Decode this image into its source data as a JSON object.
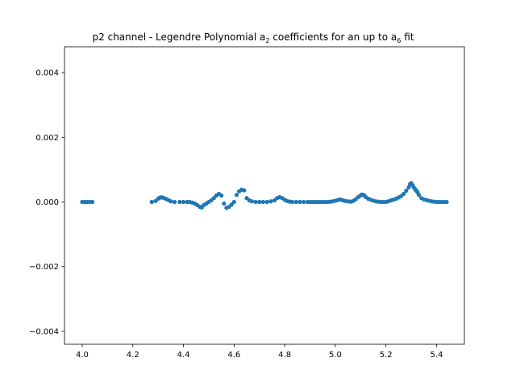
{
  "chart_data": {
    "type": "scatter",
    "title": {
      "prefix": "p2 channel - Legendre Polynomial a",
      "sub1": "2",
      "middle": " coefficients for an up to a",
      "sub2": "6",
      "suffix": " fit"
    },
    "xlabel": "",
    "ylabel": "",
    "xlim": [
      3.93,
      5.51
    ],
    "ylim": [
      -0.0044,
      0.0048
    ],
    "xticks": [
      4.0,
      4.2,
      4.4,
      4.6,
      4.8,
      5.0,
      5.2,
      5.4
    ],
    "xtick_labels": [
      "4.0",
      "4.2",
      "4.4",
      "4.6",
      "4.8",
      "5.0",
      "5.2",
      "5.4"
    ],
    "yticks": [
      -0.004,
      -0.002,
      0.0,
      0.002,
      0.004
    ],
    "ytick_labels": [
      "−0.004",
      "−0.002",
      "0.000",
      "0.002",
      "0.004"
    ],
    "grid": false,
    "legend": "none",
    "marker_color": "#1f77b4",
    "series": [
      {
        "x": [
          4.0,
          4.01,
          4.02,
          4.03,
          4.04,
          4.275,
          4.29,
          4.3,
          4.305,
          4.31,
          4.315,
          4.32,
          4.33,
          4.34,
          4.35,
          4.365,
          4.385,
          4.4,
          4.415,
          4.425,
          4.435,
          4.445,
          4.455,
          4.465,
          4.472,
          4.48,
          4.49,
          4.5,
          4.51,
          4.52,
          4.53,
          4.54,
          4.55,
          4.56,
          4.57,
          4.58,
          4.59,
          4.6,
          4.61,
          4.62,
          4.63,
          4.64,
          4.65,
          4.66,
          4.67,
          4.685,
          4.7,
          4.715,
          4.73,
          4.745,
          4.76,
          4.77,
          4.78,
          4.79,
          4.8,
          4.81,
          4.82,
          4.83,
          4.845,
          4.86,
          4.875,
          4.89,
          4.9,
          4.91,
          4.92,
          4.93,
          4.94,
          4.95,
          4.96,
          4.97,
          4.98,
          4.99,
          5.0,
          5.01,
          5.02,
          5.03,
          5.04,
          5.05,
          5.06,
          5.07,
          5.08,
          5.09,
          5.1,
          5.105,
          5.11,
          5.115,
          5.12,
          5.13,
          5.14,
          5.15,
          5.16,
          5.17,
          5.18,
          5.19,
          5.2,
          5.21,
          5.22,
          5.23,
          5.24,
          5.25,
          5.26,
          5.27,
          5.28,
          5.29,
          5.295,
          5.3,
          5.305,
          5.31,
          5.315,
          5.32,
          5.325,
          5.33,
          5.34,
          5.35,
          5.36,
          5.37,
          5.38,
          5.39,
          5.4,
          5.41,
          5.42,
          5.43,
          5.44
        ],
        "y": [
          0.0,
          0.0,
          0.0,
          0.0,
          0.0,
          0.0,
          3e-05,
          0.0001,
          0.00013,
          0.00014,
          0.00014,
          0.00013,
          0.0001,
          6e-05,
          2e-05,
          0.0,
          0.0,
          0.0,
          0.0,
          0.0,
          -2e-05,
          -5e-05,
          -0.0001,
          -0.00015,
          -0.00017,
          -0.0001,
          -5e-05,
          0.0,
          5e-05,
          0.00012,
          0.0002,
          0.00025,
          0.0002,
          -5e-05,
          -0.00018,
          -0.00015,
          -8e-05,
          0.0,
          0.00022,
          0.00033,
          0.00038,
          0.00036,
          0.00012,
          5e-05,
          2e-05,
          0.0,
          0.0,
          0.0,
          0.0,
          2e-05,
          5e-05,
          0.00012,
          0.00015,
          0.00012,
          7e-05,
          3e-05,
          1e-05,
          0.0,
          0.0,
          0.0,
          0.0,
          0.0,
          0.0,
          0.0,
          0.0,
          0.0,
          0.0,
          0.0,
          0.0,
          0.0,
          1e-05,
          2e-05,
          4e-05,
          6e-05,
          8e-05,
          5e-05,
          3e-05,
          2e-05,
          1e-05,
          3e-05,
          8e-05,
          0.00015,
          0.0002,
          0.00023,
          0.00022,
          0.0002,
          0.00015,
          0.0001,
          7e-05,
          4e-05,
          2e-05,
          1e-05,
          0.0,
          0.0,
          0.0,
          2e-05,
          5e-05,
          7e-05,
          0.0001,
          0.00014,
          0.00018,
          0.00025,
          0.00035,
          0.00045,
          0.00055,
          0.00058,
          0.00052,
          0.00045,
          0.0004,
          0.00035,
          0.0003,
          0.00022,
          0.00012,
          8e-05,
          6e-05,
          4e-05,
          2e-05,
          1e-05,
          0.0,
          0.0,
          0.0,
          0.0,
          0.0
        ]
      }
    ]
  }
}
